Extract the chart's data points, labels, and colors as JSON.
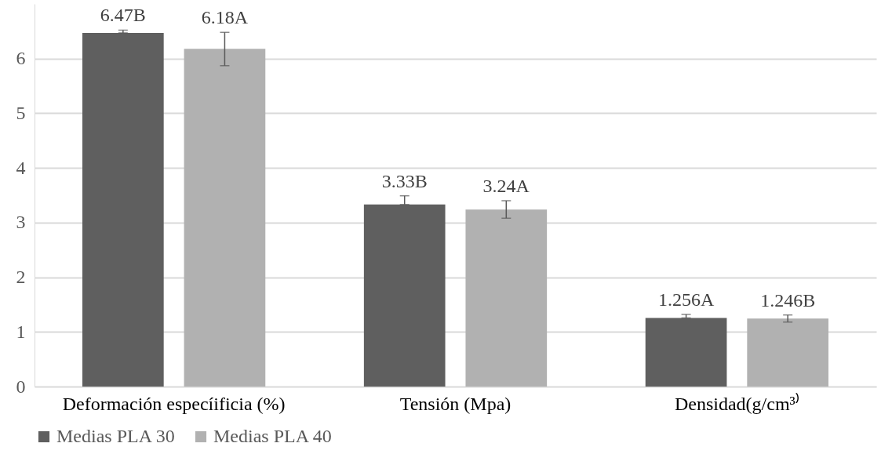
{
  "chart_data": {
    "type": "bar",
    "categories": [
      "Deformación especíificia (%)",
      "Tensión (Mpa)",
      "Densidad(g/cm³⁾"
    ],
    "series": [
      {
        "name": "Medias PLA 30",
        "color": "#5f5f5f",
        "values": [
          6.47,
          3.33,
          1.256
        ],
        "value_labels": [
          "6.47B",
          "3.33B",
          "1.256A"
        ],
        "errors": [
          [
            6.47,
            6.52
          ],
          [
            3.33,
            3.49
          ],
          [
            1.256,
            1.32
          ]
        ]
      },
      {
        "name": "Medias PLA 40",
        "color": "#b1b1b1",
        "values": [
          6.18,
          3.24,
          1.246
        ],
        "value_labels": [
          "6.18A",
          "3.24A",
          "1.246B"
        ],
        "errors": [
          [
            5.87,
            6.48
          ],
          [
            3.08,
            3.4
          ],
          [
            1.18,
            1.31
          ]
        ]
      }
    ],
    "ylim": [
      0,
      7
    ],
    "yticks": [
      0,
      1,
      2,
      3,
      4,
      5,
      6
    ],
    "grid": "y",
    "legend": "bottom"
  }
}
